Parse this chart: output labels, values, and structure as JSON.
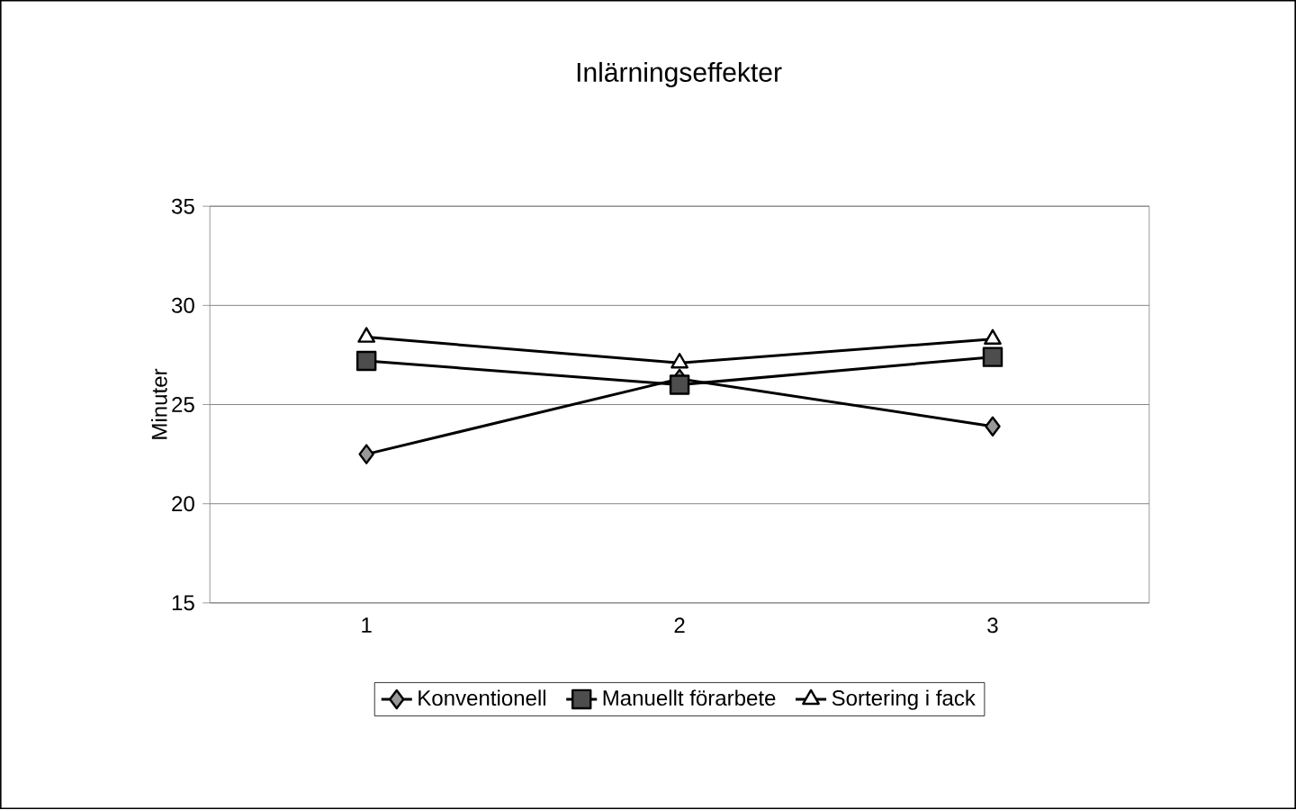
{
  "chart_data": {
    "type": "line",
    "title": "Inlärningseffekter",
    "ylabel": "Minuter",
    "categories": [
      "1",
      "2",
      "3"
    ],
    "series": [
      {
        "name": "Konventionell",
        "color": "#999999",
        "marker": "diamond",
        "values": [
          22.5,
          26.3,
          23.9
        ]
      },
      {
        "name": "Manuellt förarbete",
        "color": "#4d4d4d",
        "marker": "square",
        "values": [
          27.2,
          26.0,
          27.4
        ]
      },
      {
        "name": "Sortering i fack",
        "color": "#ffffff",
        "marker": "triangle",
        "values": [
          28.4,
          27.1,
          28.3
        ]
      }
    ],
    "ylim": [
      15,
      35
    ],
    "yticks": [
      15,
      20,
      25,
      30,
      35
    ],
    "grid": "y",
    "legend": "bottom",
    "line_style": "solid"
  }
}
